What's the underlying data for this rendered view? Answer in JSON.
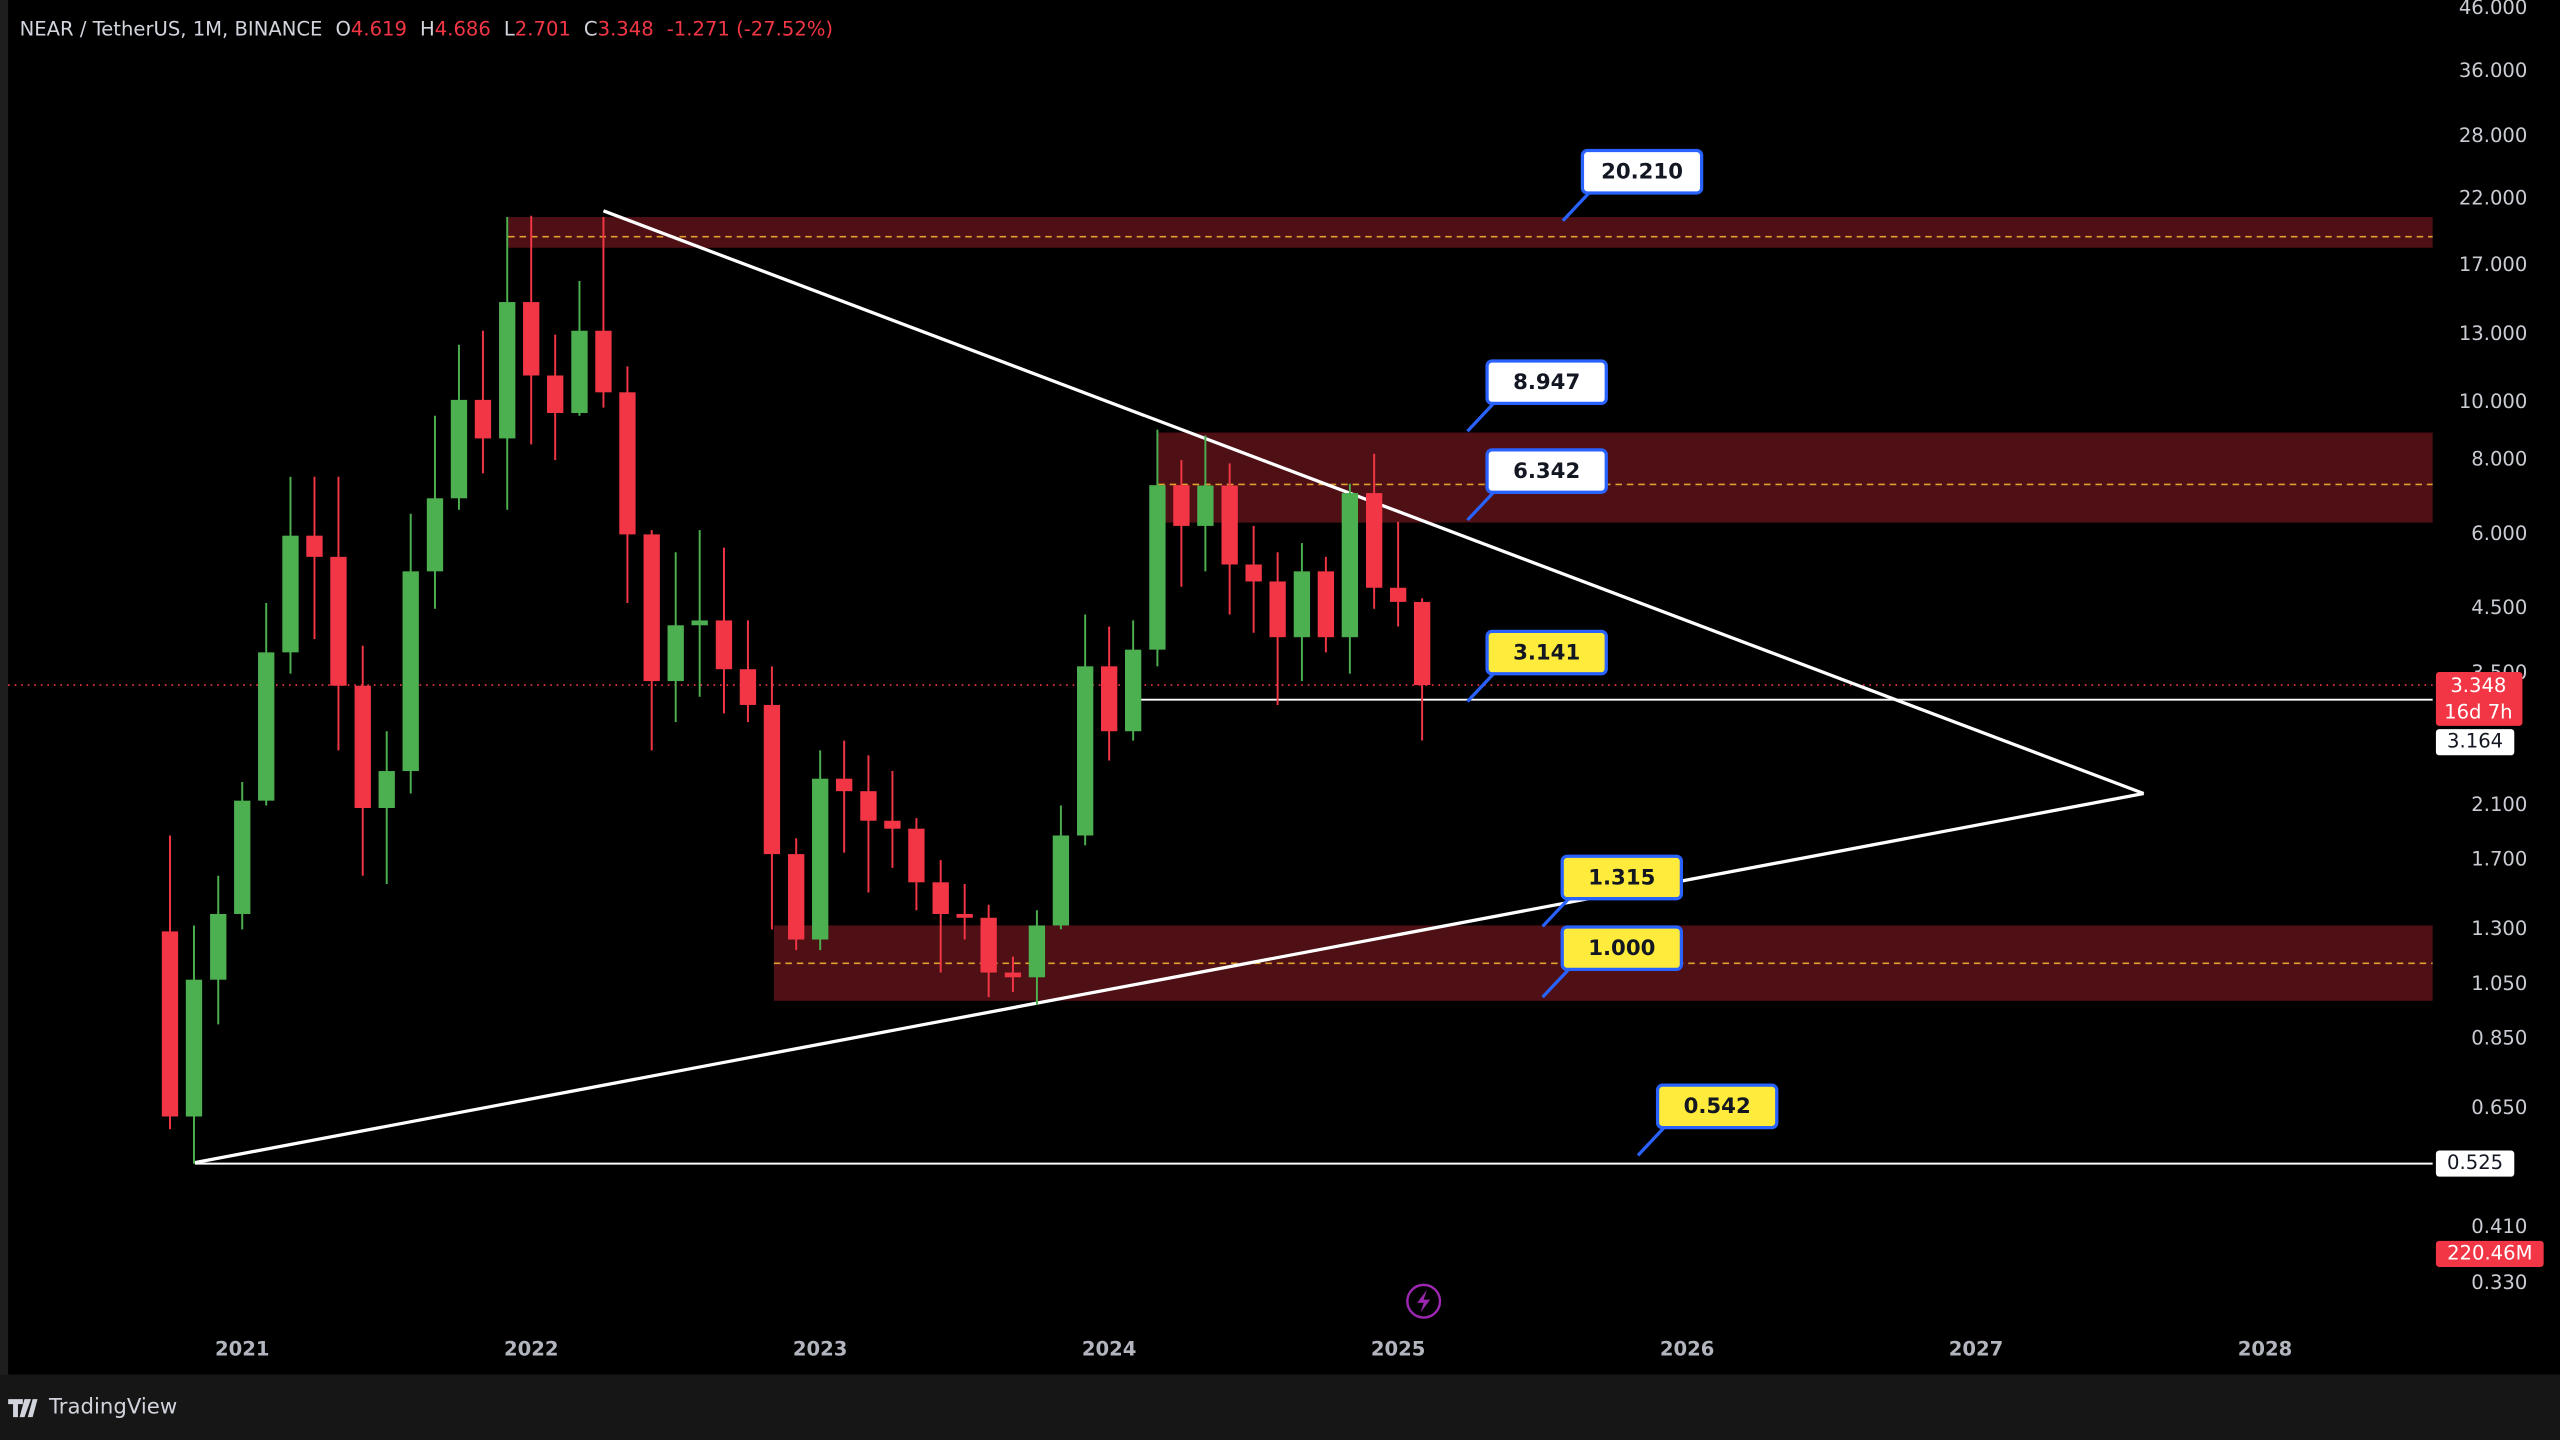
{
  "chart_data": {
    "type": "candlestick",
    "title": "NEAR / TetherUS, 1M, BINANCE",
    "ohlc_header": {
      "labels": [
        "O",
        "H",
        "L",
        "C"
      ],
      "values": [
        4.619,
        4.686,
        2.701,
        3.348
      ],
      "change": "-1.271 (-27.52%)"
    },
    "x": [
      2020.75,
      2020.833,
      2020.917,
      2021,
      2021.083,
      2021.167,
      2021.25,
      2021.333,
      2021.417,
      2021.5,
      2021.583,
      2021.667,
      2021.75,
      2021.833,
      2021.917,
      2022,
      2022.083,
      2022.167,
      2022.25,
      2022.333,
      2022.417,
      2022.5,
      2022.583,
      2022.667,
      2022.75,
      2022.833,
      2022.917,
      2023,
      2023.083,
      2023.167,
      2023.25,
      2023.333,
      2023.417,
      2023.5,
      2023.583,
      2023.667,
      2023.75,
      2023.833,
      2023.917,
      2024,
      2024.083,
      2024.167,
      2024.25,
      2024.333,
      2024.417,
      2024.5,
      2024.583,
      2024.667,
      2024.75,
      2024.833,
      2024.917,
      2025,
      2025.083
    ],
    "open": [
      1.29,
      0.63,
      1.07,
      1.38,
      2.14,
      3.8,
      5.97,
      5.5,
      3.34,
      2.08,
      2.4,
      5.2,
      6.9,
      10.1,
      8.7,
      14.75,
      11.1,
      9.6,
      13.2,
      10.4,
      6.0,
      3.4,
      4.22,
      4.3,
      3.56,
      3.1,
      1.74,
      1.25,
      2.33,
      2.22,
      1.98,
      1.92,
      1.56,
      1.38,
      1.36,
      1.1,
      1.08,
      1.32,
      1.87,
      3.6,
      2.8,
      3.84,
      7.26,
      6.2,
      7.25,
      5.34,
      5.0,
      4.03,
      5.2,
      4.03,
      7.04,
      4.88,
      4.619
    ],
    "high": [
      1.87,
      1.32,
      1.6,
      2.3,
      4.6,
      7.5,
      7.5,
      7.5,
      3.9,
      2.8,
      6.5,
      9.5,
      12.5,
      13.2,
      20.5,
      20.6,
      13.0,
      16.0,
      20.5,
      11.5,
      6.1,
      5.6,
      6.1,
      5.7,
      4.3,
      3.6,
      1.85,
      2.6,
      2.7,
      2.55,
      2.4,
      2.0,
      1.7,
      1.55,
      1.43,
      1.17,
      1.4,
      2.1,
      4.4,
      4.2,
      4.3,
      9.0,
      8.0,
      8.8,
      7.9,
      6.2,
      5.6,
      5.8,
      5.5,
      7.3,
      8.2,
      6.3,
      4.686
    ],
    "low": [
      0.6,
      0.525,
      0.9,
      1.3,
      2.1,
      3.5,
      4.0,
      2.6,
      1.6,
      1.55,
      2.2,
      4.5,
      6.6,
      7.6,
      6.6,
      8.5,
      8.0,
      9.5,
      9.8,
      4.6,
      2.6,
      2.9,
      3.2,
      3.0,
      2.9,
      1.3,
      1.2,
      1.2,
      1.75,
      1.5,
      1.65,
      1.4,
      1.1,
      1.25,
      1.0,
      1.02,
      0.97,
      1.3,
      1.8,
      2.5,
      2.7,
      3.6,
      4.9,
      5.2,
      4.4,
      4.1,
      3.1,
      3.4,
      3.8,
      3.5,
      4.5,
      4.2,
      2.701
    ],
    "close": [
      0.63,
      1.07,
      1.38,
      2.14,
      3.8,
      5.97,
      5.5,
      3.34,
      2.08,
      2.4,
      5.2,
      6.9,
      10.1,
      8.7,
      14.75,
      11.1,
      9.6,
      13.2,
      10.4,
      6.0,
      3.4,
      4.22,
      4.3,
      3.56,
      3.1,
      1.74,
      1.25,
      2.33,
      2.22,
      1.98,
      1.92,
      1.56,
      1.38,
      1.36,
      1.1,
      1.08,
      1.32,
      1.87,
      3.6,
      2.8,
      3.84,
      7.26,
      6.2,
      7.25,
      5.34,
      5.0,
      4.03,
      5.2,
      4.03,
      7.04,
      4.88,
      4.62,
      3.348
    ],
    "up_color": "#4caf50",
    "down_color": "#f23645",
    "log_scale": true,
    "ylim": [
      0.275,
      47.5
    ],
    "yticks": [
      {
        "value": 46,
        "label": "46.000"
      },
      {
        "value": 36,
        "label": "36.000"
      },
      {
        "value": 28,
        "label": "28.000"
      },
      {
        "value": 22,
        "label": "22.000"
      },
      {
        "value": 17,
        "label": "17.000"
      },
      {
        "value": 13,
        "label": "13.000"
      },
      {
        "value": 10,
        "label": "10.000"
      },
      {
        "value": 8,
        "label": "8.000"
      },
      {
        "value": 6,
        "label": "6.000"
      },
      {
        "value": 4.5,
        "label": "4.500"
      },
      {
        "value": 3.5,
        "label": "3.500"
      },
      {
        "value": 2.1,
        "label": "2.100"
      },
      {
        "value": 1.7,
        "label": "1.700"
      },
      {
        "value": 1.3,
        "label": "1.300"
      },
      {
        "value": 1.05,
        "label": "1.050"
      },
      {
        "value": 0.85,
        "label": "0.850"
      },
      {
        "value": 0.65,
        "label": "0.650"
      },
      {
        "value": 0.41,
        "label": "0.410"
      },
      {
        "value": 0.33,
        "label": "0.330"
      }
    ],
    "xlim": [
      2020.19,
      2028.58
    ],
    "xticks": [
      2021,
      2022,
      2023,
      2024,
      2025,
      2026,
      2027,
      2028
    ],
    "zones": [
      {
        "x_start": 2021.92,
        "top": 20.5,
        "bottom": 18.2,
        "mid": 19.0
      },
      {
        "x_start": 2024.17,
        "top": 8.9,
        "bottom": 6.28,
        "mid": 7.28
      },
      {
        "x_start": 2022.84,
        "top": 1.32,
        "bottom": 0.986,
        "mid": 1.14
      }
    ],
    "trendlines": [
      {
        "points": [
          [
            2022.25,
            21.0
          ],
          [
            2027.58,
            2.2
          ]
        ]
      },
      {
        "points": [
          [
            2020.836,
            0.527
          ],
          [
            2027.58,
            2.2
          ]
        ]
      }
    ],
    "hlines": [
      {
        "x_start": 2020.836,
        "value": 0.525
      },
      {
        "x_start": 2024.11,
        "value": 3.164
      }
    ],
    "callouts": [
      {
        "value": 20.21,
        "label": "20.210",
        "x": 2025.57,
        "color": "#ffffff"
      },
      {
        "value": 8.947,
        "x": 2025.24,
        "color": "#ffffff"
      },
      {
        "value": 6.342,
        "x": 2025.24,
        "color": "#ffffff"
      },
      {
        "value": 3.141,
        "x": 2025.24,
        "color": "#ffeb3b"
      },
      {
        "value": 1.315,
        "x": 2025.5,
        "color": "#ffeb3b"
      },
      {
        "value": 1.0,
        "label": "1.000",
        "x": 2025.5,
        "color": "#ffeb3b"
      },
      {
        "value": 0.542,
        "x": 2025.83,
        "color": "#ffeb3b"
      }
    ],
    "last_price": {
      "value": 3.348,
      "countdown": "16d 7h"
    },
    "price_tags": [
      {
        "value": 3.164
      },
      {
        "value": 0.525
      }
    ],
    "volume_tag": "220.46M"
  },
  "footer": {
    "brand": "TradingView"
  }
}
